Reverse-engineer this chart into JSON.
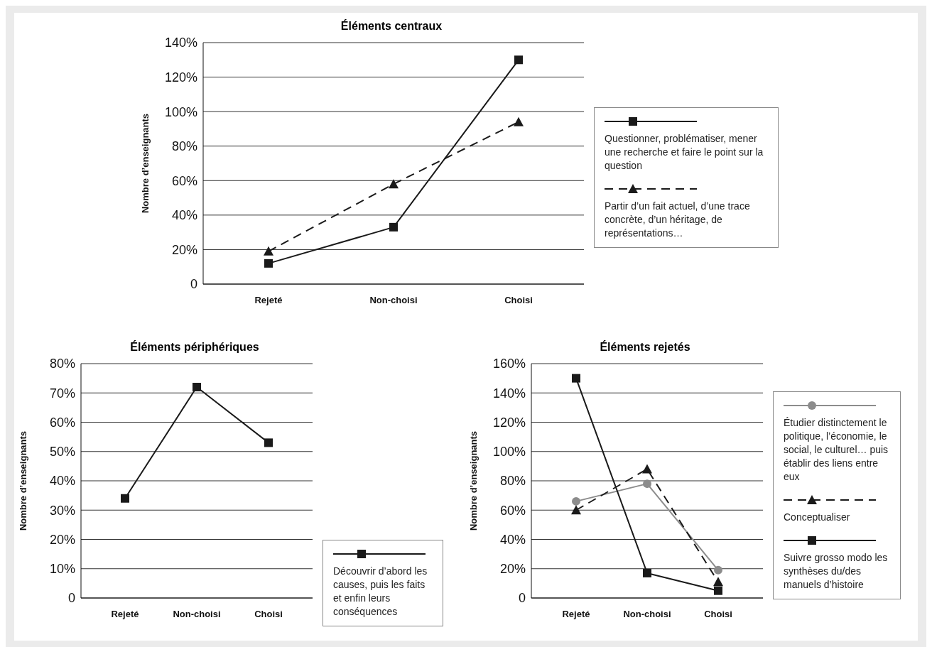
{
  "chart_data": [
    {
      "type": "line",
      "title": "Éléments centraux",
      "ylabel": "Nombre d’enseignants",
      "categories": [
        "Rejeté",
        "Non-choisi",
        "Choisi"
      ],
      "ylim": [
        0,
        140
      ],
      "yticks": [
        {
          "value": 0,
          "label": "0"
        },
        {
          "value": 20,
          "label": "20%"
        },
        {
          "value": 40,
          "label": "40%"
        },
        {
          "value": 60,
          "label": "60%"
        },
        {
          "value": 80,
          "label": "80%"
        },
        {
          "value": 100,
          "label": "100%"
        },
        {
          "value": 120,
          "label": "120%"
        },
        {
          "value": 140,
          "label": "140%"
        }
      ],
      "grid": "y",
      "legend": "right",
      "series": [
        {
          "name": "Questionner, problématiser, mener une recherche et faire le point sur la question",
          "color": "#1a1a1a",
          "marker": "square",
          "line_style": "solid",
          "values": [
            12,
            33,
            130
          ]
        },
        {
          "name": "Partir d’un fait actuel, d’une trace concrète, d’un héritage, de représentations…",
          "color": "#1a1a1a",
          "marker": "triangle",
          "line_style": "dashed",
          "values": [
            19,
            58,
            94
          ]
        }
      ]
    },
    {
      "type": "line",
      "title": "Éléments périphériques",
      "ylabel": "Nombre d’enseignants",
      "categories": [
        "Rejeté",
        "Non-choisi",
        "Choisi"
      ],
      "ylim": [
        0,
        80
      ],
      "yticks": [
        {
          "value": 0,
          "label": "0"
        },
        {
          "value": 10,
          "label": "10%"
        },
        {
          "value": 20,
          "label": "20%"
        },
        {
          "value": 30,
          "label": "30%"
        },
        {
          "value": 40,
          "label": "40%"
        },
        {
          "value": 50,
          "label": "50%"
        },
        {
          "value": 60,
          "label": "60%"
        },
        {
          "value": 70,
          "label": "70%"
        },
        {
          "value": 80,
          "label": "80%"
        }
      ],
      "grid": "y",
      "legend": "bottom right",
      "series": [
        {
          "name": "Découvrir d’abord les causes, puis les faits et enfin leurs conséquences",
          "color": "#1a1a1a",
          "marker": "square",
          "line_style": "solid",
          "values": [
            34,
            72,
            53
          ]
        }
      ]
    },
    {
      "type": "line",
      "title": "Éléments rejetés",
      "ylabel": "Nombre d’enseignants",
      "categories": [
        "Rejeté",
        "Non-choisi",
        "Choisi"
      ],
      "ylim": [
        0,
        160
      ],
      "yticks": [
        {
          "value": 0,
          "label": "0"
        },
        {
          "value": 20,
          "label": "20%"
        },
        {
          "value": 40,
          "label": "40%"
        },
        {
          "value": 60,
          "label": "60%"
        },
        {
          "value": 80,
          "label": "80%"
        },
        {
          "value": 100,
          "label": "100%"
        },
        {
          "value": 120,
          "label": "120%"
        },
        {
          "value": 140,
          "label": "140%"
        },
        {
          "value": 160,
          "label": "160%"
        }
      ],
      "grid": "y",
      "legend": "right",
      "series": [
        {
          "name": "Étudier distinctement le politique, l’économie, le social, le culturel… puis établir des liens entre eux",
          "color": "#8c8c8c",
          "marker": "circle",
          "line_style": "solid",
          "values": [
            66,
            78,
            19
          ]
        },
        {
          "name": "Conceptualiser",
          "color": "#1a1a1a",
          "marker": "triangle",
          "line_style": "dashed",
          "values": [
            60,
            88,
            11
          ]
        },
        {
          "name": "Suivre grosso modo les synthèses du/des manuels d’histoire",
          "color": "#1a1a1a",
          "marker": "square",
          "line_style": "solid",
          "values": [
            150,
            17,
            5
          ]
        }
      ]
    }
  ]
}
